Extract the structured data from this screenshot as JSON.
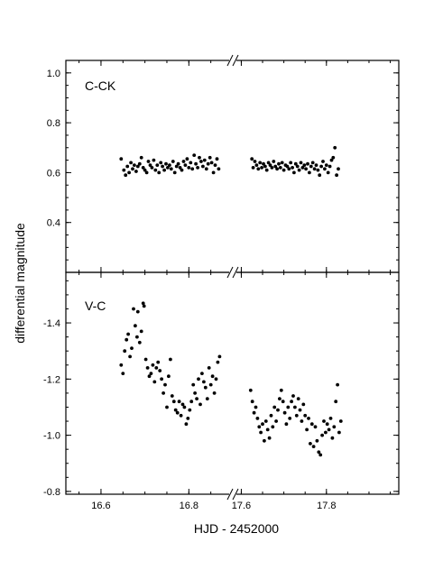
{
  "chart_data": {
    "type": "scatter",
    "xlabel": "HJD - 2452000",
    "ylabel": "differential magnitude",
    "x_ticks": [
      "16.6",
      "16.8",
      "17.6",
      "17.8"
    ],
    "x_break": "//",
    "x_segments": [
      [
        16.52,
        16.9
      ],
      [
        17.58,
        17.97
      ]
    ],
    "grid": false,
    "panels": [
      {
        "label": "C-CK",
        "ylim": [
          1.05,
          0.2
        ],
        "y_ticks": [
          "0.4",
          "0.6",
          "0.8",
          "1.0"
        ],
        "points": [
          [
            16.646,
            0.655
          ],
          [
            16.652,
            0.61
          ],
          [
            16.656,
            0.59
          ],
          [
            16.66,
            0.625
          ],
          [
            16.664,
            0.6
          ],
          [
            16.668,
            0.64
          ],
          [
            16.672,
            0.615
          ],
          [
            16.676,
            0.63
          ],
          [
            16.68,
            0.605
          ],
          [
            16.684,
            0.625
          ],
          [
            16.688,
            0.635
          ],
          [
            16.692,
            0.66
          ],
          [
            16.696,
            0.62
          ],
          [
            16.7,
            0.61
          ],
          [
            16.704,
            0.6
          ],
          [
            16.708,
            0.645
          ],
          [
            16.712,
            0.63
          ],
          [
            16.716,
            0.62
          ],
          [
            16.72,
            0.65
          ],
          [
            16.724,
            0.61
          ],
          [
            16.728,
            0.63
          ],
          [
            16.732,
            0.6
          ],
          [
            16.736,
            0.64
          ],
          [
            16.74,
            0.625
          ],
          [
            16.744,
            0.61
          ],
          [
            16.748,
            0.635
          ],
          [
            16.752,
            0.62
          ],
          [
            16.756,
            0.63
          ],
          [
            16.76,
            0.615
          ],
          [
            16.764,
            0.645
          ],
          [
            16.768,
            0.6
          ],
          [
            16.772,
            0.625
          ],
          [
            16.776,
            0.635
          ],
          [
            16.78,
            0.62
          ],
          [
            16.784,
            0.61
          ],
          [
            16.788,
            0.645
          ],
          [
            16.792,
            0.63
          ],
          [
            16.796,
            0.655
          ],
          [
            16.8,
            0.62
          ],
          [
            16.804,
            0.64
          ],
          [
            16.808,
            0.615
          ],
          [
            16.812,
            0.67
          ],
          [
            16.816,
            0.635
          ],
          [
            16.82,
            0.62
          ],
          [
            16.824,
            0.66
          ],
          [
            16.828,
            0.645
          ],
          [
            16.832,
            0.625
          ],
          [
            16.836,
            0.65
          ],
          [
            16.84,
            0.615
          ],
          [
            16.844,
            0.635
          ],
          [
            16.848,
            0.66
          ],
          [
            16.852,
            0.64
          ],
          [
            16.856,
            0.6
          ],
          [
            16.86,
            0.63
          ],
          [
            16.864,
            0.655
          ],
          [
            16.868,
            0.615
          ],
          [
            17.625,
            0.655
          ],
          [
            17.628,
            0.62
          ],
          [
            17.632,
            0.645
          ],
          [
            17.636,
            0.63
          ],
          [
            17.64,
            0.615
          ],
          [
            17.644,
            0.64
          ],
          [
            17.648,
            0.62
          ],
          [
            17.652,
            0.635
          ],
          [
            17.656,
            0.625
          ],
          [
            17.66,
            0.61
          ],
          [
            17.664,
            0.64
          ],
          [
            17.668,
            0.63
          ],
          [
            17.672,
            0.62
          ],
          [
            17.676,
            0.645
          ],
          [
            17.68,
            0.625
          ],
          [
            17.684,
            0.615
          ],
          [
            17.688,
            0.635
          ],
          [
            17.692,
            0.62
          ],
          [
            17.696,
            0.64
          ],
          [
            17.7,
            0.61
          ],
          [
            17.704,
            0.63
          ],
          [
            17.708,
            0.625
          ],
          [
            17.712,
            0.615
          ],
          [
            17.716,
            0.64
          ],
          [
            17.72,
            0.62
          ],
          [
            17.724,
            0.6
          ],
          [
            17.728,
            0.635
          ],
          [
            17.732,
            0.625
          ],
          [
            17.736,
            0.61
          ],
          [
            17.74,
            0.64
          ],
          [
            17.744,
            0.62
          ],
          [
            17.748,
            0.63
          ],
          [
            17.752,
            0.615
          ],
          [
            17.756,
            0.635
          ],
          [
            17.76,
            0.6
          ],
          [
            17.764,
            0.625
          ],
          [
            17.768,
            0.64
          ],
          [
            17.772,
            0.615
          ],
          [
            17.776,
            0.63
          ],
          [
            17.78,
            0.61
          ],
          [
            17.784,
            0.59
          ],
          [
            17.788,
            0.625
          ],
          [
            17.792,
            0.645
          ],
          [
            17.796,
            0.615
          ],
          [
            17.8,
            0.63
          ],
          [
            17.804,
            0.6
          ],
          [
            17.808,
            0.625
          ],
          [
            17.812,
            0.65
          ],
          [
            17.816,
            0.66
          ],
          [
            17.82,
            0.7
          ],
          [
            17.824,
            0.59
          ],
          [
            17.828,
            0.615
          ]
        ]
      },
      {
        "label": "V-C",
        "ylim": [
          -1.58,
          -0.79
        ],
        "y_ticks": [
          "-1.4",
          "-1.2",
          "-1.0",
          "-0.8"
        ],
        "points": [
          [
            16.646,
            -1.25
          ],
          [
            16.65,
            -1.22
          ],
          [
            16.654,
            -1.3
          ],
          [
            16.658,
            -1.34
          ],
          [
            16.662,
            -1.36
          ],
          [
            16.666,
            -1.28
          ],
          [
            16.67,
            -1.31
          ],
          [
            16.674,
            -1.45
          ],
          [
            16.678,
            -1.39
          ],
          [
            16.682,
            -1.35
          ],
          [
            16.684,
            -1.44
          ],
          [
            16.688,
            -1.33
          ],
          [
            16.692,
            -1.37
          ],
          [
            16.696,
            -1.47
          ],
          [
            16.698,
            -1.46
          ],
          [
            16.702,
            -1.27
          ],
          [
            16.706,
            -1.24
          ],
          [
            16.71,
            -1.21
          ],
          [
            16.714,
            -1.22
          ],
          [
            16.718,
            -1.25
          ],
          [
            16.722,
            -1.19
          ],
          [
            16.726,
            -1.24
          ],
          [
            16.73,
            -1.26
          ],
          [
            16.734,
            -1.23
          ],
          [
            16.738,
            -1.2
          ],
          [
            16.742,
            -1.15
          ],
          [
            16.746,
            -1.18
          ],
          [
            16.75,
            -1.1
          ],
          [
            16.754,
            -1.21
          ],
          [
            16.758,
            -1.27
          ],
          [
            16.762,
            -1.14
          ],
          [
            16.766,
            -1.12
          ],
          [
            16.77,
            -1.09
          ],
          [
            16.774,
            -1.08
          ],
          [
            16.778,
            -1.12
          ],
          [
            16.782,
            -1.07
          ],
          [
            16.786,
            -1.11
          ],
          [
            16.79,
            -1.1
          ],
          [
            16.794,
            -1.04
          ],
          [
            16.798,
            -1.06
          ],
          [
            16.802,
            -1.09
          ],
          [
            16.806,
            -1.12
          ],
          [
            16.81,
            -1.18
          ],
          [
            16.814,
            -1.15
          ],
          [
            16.818,
            -1.13
          ],
          [
            16.822,
            -1.2
          ],
          [
            16.826,
            -1.11
          ],
          [
            16.83,
            -1.22
          ],
          [
            16.834,
            -1.19
          ],
          [
            16.838,
            -1.17
          ],
          [
            16.842,
            -1.13
          ],
          [
            16.846,
            -1.24
          ],
          [
            16.85,
            -1.18
          ],
          [
            16.854,
            -1.21
          ],
          [
            16.858,
            -1.15
          ],
          [
            16.862,
            -1.2
          ],
          [
            16.866,
            -1.26
          ],
          [
            16.87,
            -1.28
          ],
          [
            17.622,
            -1.16
          ],
          [
            17.626,
            -1.12
          ],
          [
            17.63,
            -1.08
          ],
          [
            17.634,
            -1.1
          ],
          [
            17.638,
            -1.06
          ],
          [
            17.642,
            -1.03
          ],
          [
            17.646,
            -1.01
          ],
          [
            17.65,
            -1.04
          ],
          [
            17.654,
            -0.98
          ],
          [
            17.658,
            -1.05
          ],
          [
            17.662,
            -1.02
          ],
          [
            17.666,
            -0.99
          ],
          [
            17.67,
            -1.07
          ],
          [
            17.674,
            -1.03
          ],
          [
            17.678,
            -1.1
          ],
          [
            17.682,
            -1.05
          ],
          [
            17.686,
            -1.09
          ],
          [
            17.69,
            -1.13
          ],
          [
            17.694,
            -1.16
          ],
          [
            17.698,
            -1.12
          ],
          [
            17.702,
            -1.08
          ],
          [
            17.706,
            -1.04
          ],
          [
            17.71,
            -1.1
          ],
          [
            17.714,
            -1.06
          ],
          [
            17.718,
            -1.12
          ],
          [
            17.722,
            -1.14
          ],
          [
            17.726,
            -1.1
          ],
          [
            17.73,
            -1.07
          ],
          [
            17.734,
            -1.13
          ],
          [
            17.738,
            -1.09
          ],
          [
            17.742,
            -1.05
          ],
          [
            17.746,
            -1.11
          ],
          [
            17.75,
            -1.07
          ],
          [
            17.754,
            -1.02
          ],
          [
            17.758,
            -1.06
          ],
          [
            17.762,
            -0.97
          ],
          [
            17.766,
            -1.04
          ],
          [
            17.77,
            -0.96
          ],
          [
            17.774,
            -1.03
          ],
          [
            17.778,
            -0.98
          ],
          [
            17.782,
            -0.94
          ],
          [
            17.786,
            -0.93
          ],
          [
            17.79,
            -1.0
          ],
          [
            17.794,
            -1.05
          ],
          [
            17.798,
            -1.01
          ],
          [
            17.802,
            -1.04
          ],
          [
            17.806,
            -1.02
          ],
          [
            17.81,
            -1.06
          ],
          [
            17.814,
            -0.99
          ],
          [
            17.818,
            -1.03
          ],
          [
            17.822,
            -1.12
          ],
          [
            17.826,
            -1.18
          ],
          [
            17.83,
            -1.01
          ],
          [
            17.834,
            -1.05
          ]
        ]
      }
    ]
  }
}
